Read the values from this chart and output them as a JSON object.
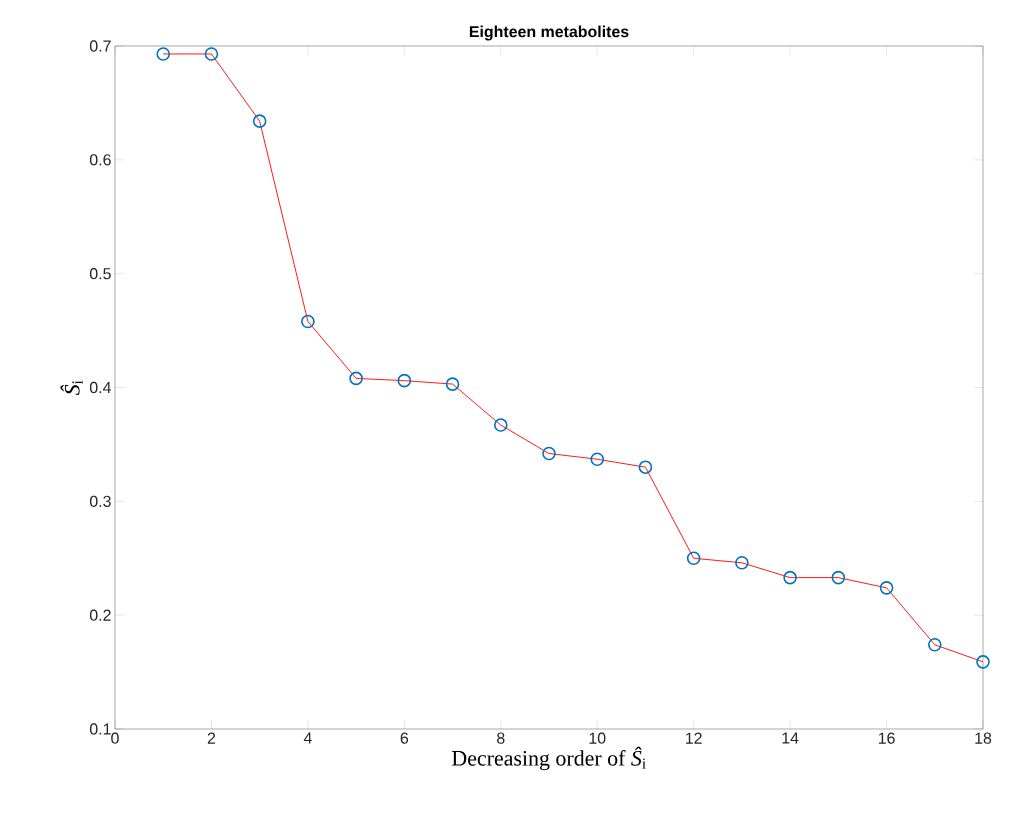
{
  "chart_data": {
    "type": "line",
    "title": "Eighteen metabolites",
    "xlabel": "Decreasing order of *Ŝ*$_{i}$",
    "ylabel": "*Ŝ*$_{i}$",
    "x": [
      1,
      2,
      3,
      4,
      5,
      6,
      7,
      8,
      9,
      10,
      11,
      12,
      13,
      14,
      15,
      16,
      17,
      18
    ],
    "series": [
      {
        "color": "#ff0000",
        "colors": [
          "#0072bd",
          "#0072bd",
          "#0072bd",
          "#0072bd",
          "#0072bd",
          "#0072bd",
          "#0072bd",
          "#0072bd",
          "#0072bd",
          "#0072bd",
          "#0072bd",
          "#0072bd",
          "#0072bd",
          "#0072bd",
          "#0072bd",
          "#0072bd",
          "#0072bd",
          "#0072bd"
        ],
        "values": [
          0.693,
          0.693,
          0.634,
          0.458,
          0.408,
          0.406,
          0.403,
          0.367,
          0.342,
          0.337,
          0.33,
          0.25,
          0.246,
          0.233,
          0.233,
          0.224,
          0.174,
          0.159
        ]
      }
    ],
    "marker": "circle",
    "line_style": "solid",
    "xlim": [
      0,
      18
    ],
    "ylim": [
      0.1,
      0.7
    ],
    "xticks": [
      0,
      2,
      4,
      6,
      8,
      10,
      12,
      14,
      16,
      18
    ],
    "yticks": [
      0.1,
      0.2,
      0.3,
      0.4,
      0.5,
      0.6,
      0.7
    ]
  }
}
